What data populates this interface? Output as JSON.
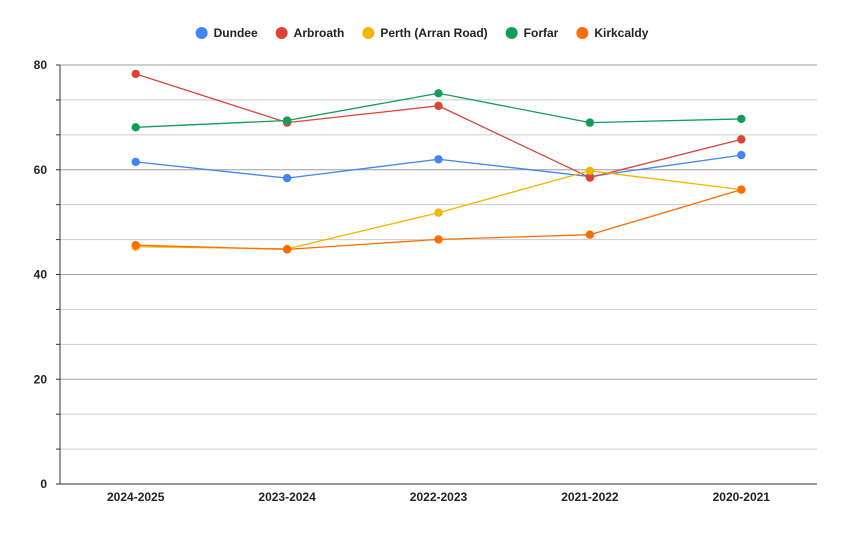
{
  "chart_data": {
    "type": "line",
    "title": "",
    "xlabel": "",
    "ylabel": "",
    "categories": [
      "2024-2025",
      "2023-2024",
      "2022-2023",
      "2021-2022",
      "2020-2021"
    ],
    "ylim": [
      0,
      80
    ],
    "y_ticks": [
      "0",
      "20",
      "40",
      "60",
      "80"
    ],
    "grid": true,
    "legend_position": "top-center",
    "series": [
      {
        "name": "Dundee",
        "color": "#4285F4",
        "values": [
          61.5,
          58.4,
          62.0,
          58.7,
          62.8
        ]
      },
      {
        "name": "Arbroath",
        "color": "#DB4437",
        "values": [
          78.3,
          69.0,
          72.2,
          58.5,
          65.8
        ]
      },
      {
        "name": "Perth (Arran Road)",
        "color": "#F4B400",
        "values": [
          45.3,
          44.9,
          51.8,
          59.8,
          56.2
        ]
      },
      {
        "name": "Forfar",
        "color": "#0F9D58",
        "values": [
          68.1,
          69.4,
          74.6,
          69.0,
          69.7
        ]
      },
      {
        "name": "Kirkcaldy",
        "color": "#FF6D01",
        "values": [
          45.6,
          44.8,
          46.7,
          47.6,
          56.2
        ]
      }
    ]
  }
}
